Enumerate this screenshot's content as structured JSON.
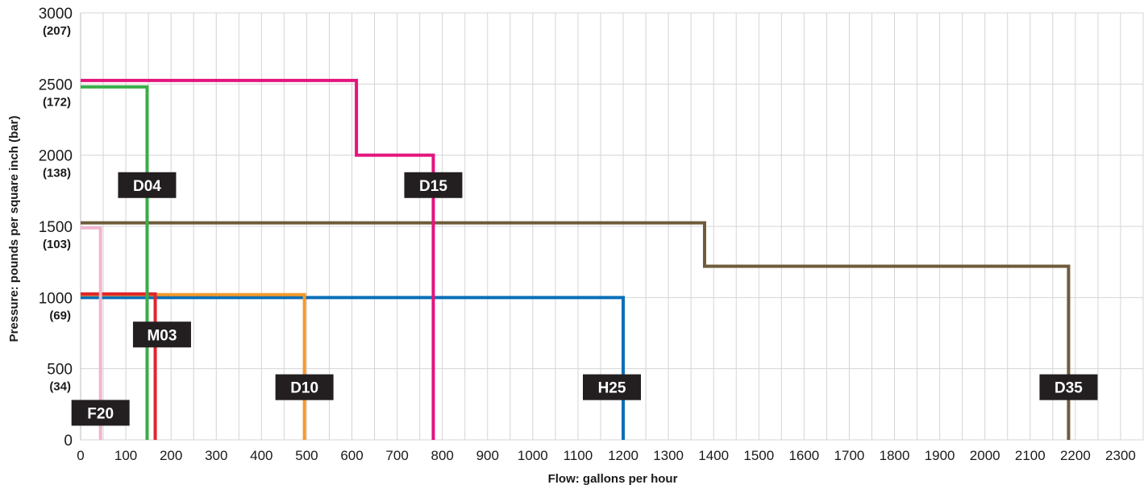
{
  "chart_data": {
    "type": "line",
    "xlabel": "Flow: gallons per hour",
    "ylabel": "Pressure: pounds per square inch (bar)",
    "xlim": [
      0,
      2350
    ],
    "ylim": [
      0,
      3000
    ],
    "x_ticks": [
      0,
      100,
      200,
      300,
      400,
      500,
      600,
      700,
      800,
      900,
      1000,
      1100,
      1200,
      1300,
      1400,
      1500,
      1600,
      1700,
      1800,
      1900,
      2000,
      2100,
      2200,
      2300
    ],
    "x_tick_labels": [
      "0",
      "100",
      "200",
      "300",
      "400",
      "500",
      "600",
      "700",
      "800",
      "900",
      "1000",
      "1100",
      "1200",
      "1300",
      "1400",
      "1500",
      "1600",
      "1700",
      "1800",
      "1900",
      "2000",
      "2100",
      "2200",
      "2300"
    ],
    "y_ticks": [
      0,
      500,
      1000,
      1500,
      2000,
      2500,
      3000
    ],
    "y_tick_labels": [
      "0",
      "500",
      "1000",
      "1500",
      "2000",
      "2500",
      "3000"
    ],
    "y_tick_sublabels": [
      "",
      "(34)",
      "(69)",
      "(103)",
      "(138)",
      "(172)",
      "(207)"
    ],
    "grid": true,
    "series": [
      {
        "name": "D35",
        "color": "#6e5b3a",
        "points": [
          [
            0,
            1525
          ],
          [
            1380,
            1525
          ],
          [
            1380,
            1220
          ],
          [
            2185,
            1220
          ],
          [
            2185,
            0
          ]
        ],
        "label_at": [
          2185,
          370
        ]
      },
      {
        "name": "H25",
        "color": "#0a6fb7",
        "points": [
          [
            0,
            1000
          ],
          [
            1200,
            1000
          ],
          [
            1200,
            0
          ]
        ],
        "label_at": [
          1175,
          370
        ]
      },
      {
        "name": "D15",
        "color": "#e4147d",
        "points": [
          [
            0,
            2525
          ],
          [
            610,
            2525
          ],
          [
            610,
            2000
          ],
          [
            780,
            2000
          ],
          [
            780,
            0
          ]
        ],
        "label_at": [
          780,
          1790
        ]
      },
      {
        "name": "D10",
        "color": "#f39a2c",
        "points": [
          [
            0,
            1020
          ],
          [
            495,
            1020
          ],
          [
            495,
            0
          ]
        ],
        "label_at": [
          495,
          370
        ]
      },
      {
        "name": "M03",
        "color": "#e0262c",
        "points": [
          [
            0,
            1025
          ],
          [
            165,
            1025
          ],
          [
            165,
            0
          ]
        ],
        "label_at": [
          180,
          740
        ]
      },
      {
        "name": "D04",
        "color": "#3aae4a",
        "points": [
          [
            0,
            2480
          ],
          [
            147,
            2480
          ],
          [
            147,
            0
          ]
        ],
        "label_at": [
          147,
          1790
        ]
      },
      {
        "name": "F20",
        "color": "#f0b6cf",
        "points": [
          [
            0,
            1490
          ],
          [
            44,
            1490
          ],
          [
            44,
            0
          ]
        ],
        "label_at": [
          44,
          190
        ]
      }
    ]
  }
}
